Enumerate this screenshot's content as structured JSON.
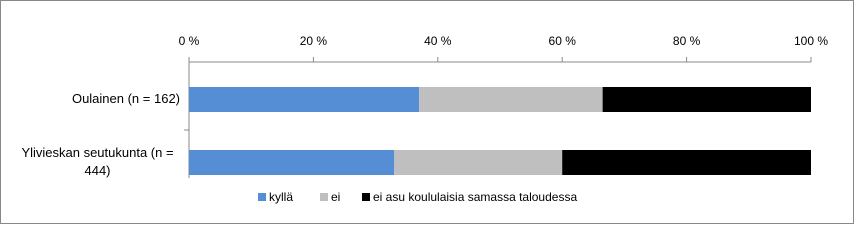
{
  "chart_data": {
    "type": "stacked-bar-horizontal",
    "categories": [
      "Oulainen  (n = 162)",
      "Ylivieskan seutukunta (n = 444)"
    ],
    "series": [
      {
        "name": "kyllä",
        "color": "#558ed5",
        "values": [
          37,
          33
        ]
      },
      {
        "name": "ei",
        "color": "#bfbfbf",
        "values": [
          29.5,
          27
        ]
      },
      {
        "name": "ei asu koululaisia  samassa taloudessa",
        "color": "#000000",
        "values": [
          33.5,
          40
        ]
      }
    ],
    "xlim": [
      0,
      100
    ],
    "xticks": [
      {
        "value": 0,
        "label": "0 %"
      },
      {
        "value": 20,
        "label": "20 %"
      },
      {
        "value": 40,
        "label": "40 %"
      },
      {
        "value": 60,
        "label": "60 %"
      },
      {
        "value": 80,
        "label": "80 %"
      },
      {
        "value": 100,
        "label": "100 %"
      }
    ],
    "legend": "bottom"
  }
}
